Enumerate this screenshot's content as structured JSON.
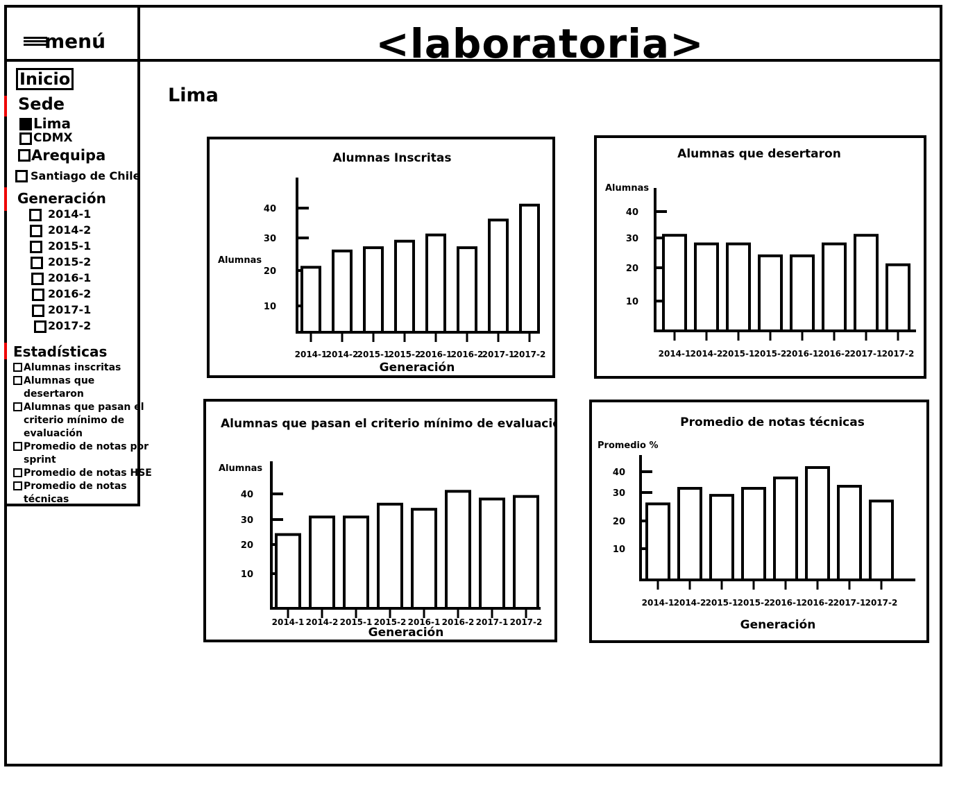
{
  "header": {
    "menu_label": "menú",
    "brand": "<laboratoria>"
  },
  "sidebar": {
    "home": "Inicio",
    "sede_title": "Sede",
    "sedes": [
      {
        "label": "Lima",
        "checked": true
      },
      {
        "label": "CDMX",
        "checked": false
      },
      {
        "label": "Arequipa",
        "checked": false
      },
      {
        "label": "Santiago de Chile",
        "checked": false
      }
    ],
    "generacion_title": "Generación",
    "generaciones": [
      "2014-1",
      "2014-2",
      "2015-1",
      "2015-2",
      "2016-1",
      "2016-2",
      "2017-1",
      "2017-2"
    ],
    "estadisticas_title": "Estadísticas",
    "estadisticas": [
      [
        "Alumnas inscritas"
      ],
      [
        "Alumnas que",
        "desertaron"
      ],
      [
        "Alumnas que pasan el",
        "criterio mínimo de",
        "evaluación"
      ],
      [
        "Promedio de notas por",
        "sprint"
      ],
      [
        "Promedio de notas HSE"
      ],
      [
        "Promedio de notas",
        "técnicas"
      ]
    ]
  },
  "main": {
    "title": "Lima"
  },
  "chart_data": [
    {
      "type": "bar",
      "title": "Alumnas Inscritas",
      "ylabel": "Alumnas",
      "xlabel": "Generación",
      "categories": [
        "2014-1",
        "2014-2",
        "2015-1",
        "2015-2",
        "2016-1",
        "2016-2",
        "2017-1",
        "2017-2"
      ],
      "values": [
        21,
        26,
        27,
        29,
        31,
        27,
        36,
        41
      ],
      "yticks": [
        10,
        20,
        30,
        40
      ],
      "ylim": [
        0,
        48
      ]
    },
    {
      "type": "bar",
      "title": "Alumnas que desertaron",
      "ylabel": "Alumnas",
      "xlabel": "",
      "categories": [
        "2014-1",
        "2014-2",
        "2015-1",
        "2015-2",
        "2016-1",
        "2016-2",
        "2017-1",
        "2017-2"
      ],
      "values": [
        31,
        28,
        28,
        24,
        24,
        28,
        31,
        21
      ],
      "yticks": [
        10,
        20,
        30,
        40
      ],
      "ylim": [
        0,
        48
      ]
    },
    {
      "type": "bar",
      "title": "Alumnas que pasan el criterio mínimo de evaluación",
      "ylabel": "Alumnas",
      "xlabel": "Generación",
      "categories": [
        "2014-1",
        "2014-2",
        "2015-1",
        "2015-2",
        "2016-1",
        "2016-2",
        "2017-1",
        "2017-2"
      ],
      "values": [
        24,
        31,
        31,
        36,
        34,
        41,
        38,
        39
      ],
      "yticks": [
        10,
        20,
        30,
        40
      ],
      "ylim": [
        0,
        48
      ]
    },
    {
      "type": "bar",
      "title": "Promedio de notas técnicas",
      "ylabel": "Promedio %",
      "xlabel": "Generación",
      "categories": [
        "2014-1",
        "2014-2",
        "2015-1",
        "2015-2",
        "2016-1",
        "2016-2",
        "2017-1",
        "2017-2"
      ],
      "values": [
        26,
        32,
        29,
        32,
        37,
        42,
        33,
        27
      ],
      "yticks": [
        10,
        20,
        30,
        40
      ],
      "ylim": [
        0,
        48
      ]
    }
  ]
}
